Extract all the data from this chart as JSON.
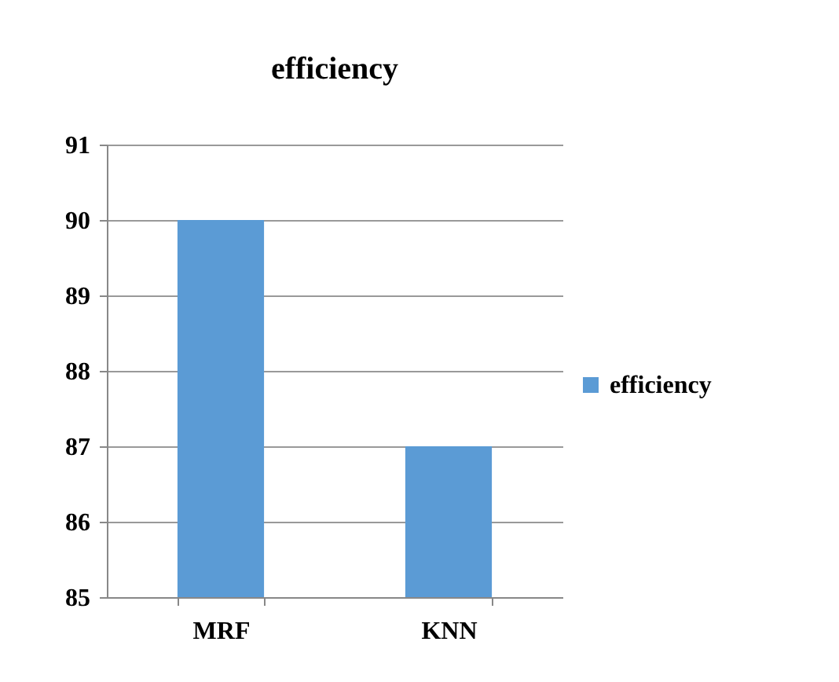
{
  "chart_data": {
    "type": "bar",
    "title": "efficiency",
    "categories": [
      "MRF",
      "KNN"
    ],
    "series": [
      {
        "name": "efficiency",
        "color": "#5b9bd5",
        "values": [
          90,
          87
        ]
      }
    ],
    "ylim": [
      85,
      91
    ],
    "yticks": [
      85,
      86,
      87,
      88,
      89,
      90,
      91
    ],
    "grid": "y",
    "legend": "right"
  }
}
